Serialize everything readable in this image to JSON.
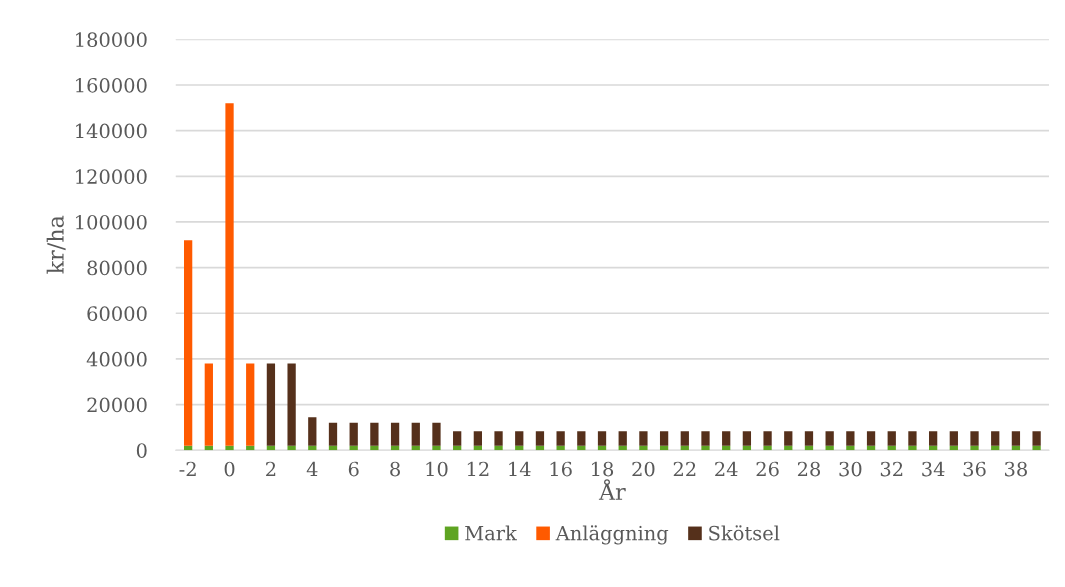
{
  "chart_data": {
    "type": "bar",
    "stacked": true,
    "xlabel": "År",
    "ylabel": "kr/ha",
    "categories": [
      "-2",
      null,
      "0",
      null,
      "2",
      null,
      "4",
      null,
      "6",
      null,
      "8",
      null,
      "10",
      null,
      "12",
      null,
      "14",
      null,
      "16",
      null,
      "18",
      null,
      "20",
      null,
      "22",
      null,
      "24",
      null,
      "26",
      null,
      "28",
      null,
      "30",
      null,
      "32",
      null,
      "34",
      null,
      "36",
      null,
      "38",
      null
    ],
    "series": [
      {
        "name": "Mark",
        "color": "#5ea422",
        "values": [
          2000,
          2000,
          2000,
          2000,
          2000,
          2000,
          2000,
          2000,
          2000,
          2000,
          2000,
          2000,
          2000,
          2000,
          2000,
          2000,
          2000,
          2000,
          2000,
          2000,
          2000,
          2000,
          2000,
          2000,
          2000,
          2000,
          2000,
          2000,
          2000,
          2000,
          2000,
          2000,
          2000,
          2000,
          2000,
          2000,
          2000,
          2000,
          2000,
          2000,
          2000,
          2000
        ]
      },
      {
        "name": "Anläggning",
        "color": "#ff5a00",
        "values": [
          90000,
          36000,
          150000,
          36000,
          null,
          null,
          null,
          null,
          null,
          null,
          null,
          null,
          null,
          null,
          null,
          null,
          null,
          null,
          null,
          null,
          null,
          null,
          null,
          null,
          null,
          null,
          null,
          null,
          null,
          null,
          null,
          null,
          null,
          null,
          null,
          null,
          null,
          null,
          null,
          null,
          null,
          null
        ]
      },
      {
        "name": "Skötsel",
        "color": "#55301b",
        "values": [
          null,
          null,
          null,
          null,
          36000,
          36000,
          12500,
          10000,
          10000,
          10000,
          10000,
          10000,
          10000,
          6300,
          6300,
          6300,
          6300,
          6300,
          6300,
          6300,
          6300,
          6300,
          6300,
          6300,
          6300,
          6300,
          6300,
          6300,
          6300,
          6300,
          6300,
          6300,
          6300,
          6300,
          6300,
          6300,
          6300,
          6300,
          6300,
          6300,
          6300,
          6300
        ]
      }
    ],
    "ylim": [
      0,
      180000
    ],
    "yticks": [
      0,
      20000,
      40000,
      60000,
      80000,
      100000,
      120000,
      140000,
      160000,
      180000
    ],
    "grid": "y",
    "legend": "bottom"
  }
}
